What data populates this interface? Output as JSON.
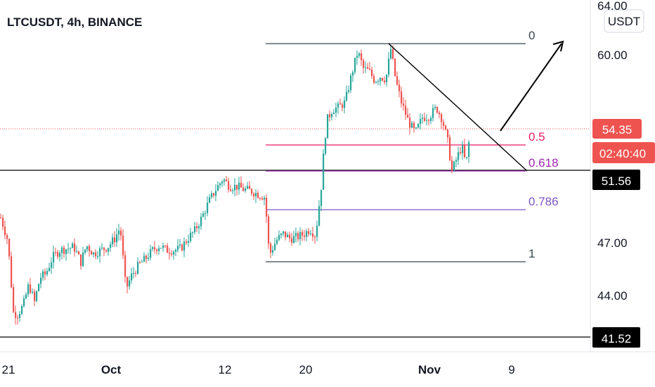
{
  "chart_data": {
    "type": "candlestick",
    "title": "LTCUSDT, 4h, BINANCE",
    "currency_badge": "USDT",
    "x_ticks": [
      "21",
      "Oct",
      "12",
      "20",
      "Nov",
      "9"
    ],
    "y_ticks": [
      "64.00",
      "60.00",
      "47.00",
      "44.00"
    ],
    "y_scale": "log",
    "ylim": [
      40.0,
      64.5
    ],
    "last_price": "54.35",
    "countdown": "02:40:40",
    "horizontal_levels": [
      "51.56",
      "41.52"
    ],
    "fib_levels": [
      {
        "label": "0",
        "price": 60.8
      },
      {
        "label": "0.5",
        "price": 53.3
      },
      {
        "label": "0.618",
        "price": 51.6
      },
      {
        "label": "0.786",
        "price": 49.3
      },
      {
        "label": "1",
        "price": 46.1
      }
    ],
    "price_path": [
      [
        0,
        48.6
      ],
      [
        10,
        47.2
      ],
      [
        18,
        43.0
      ],
      [
        24,
        42.9
      ],
      [
        32,
        43.4
      ],
      [
        40,
        44.6
      ],
      [
        48,
        43.6
      ],
      [
        56,
        45.0
      ],
      [
        64,
        45.2
      ],
      [
        74,
        46.2
      ],
      [
        84,
        46.6
      ],
      [
        94,
        46.7
      ],
      [
        104,
        46.8
      ],
      [
        114,
        45.9
      ],
      [
        122,
        46.9
      ],
      [
        132,
        46.4
      ],
      [
        142,
        46.6
      ],
      [
        152,
        46.8
      ],
      [
        162,
        47.3
      ],
      [
        170,
        48.0
      ],
      [
        178,
        44.3
      ],
      [
        186,
        45.1
      ],
      [
        196,
        45.7
      ],
      [
        206,
        46.1
      ],
      [
        216,
        46.6
      ],
      [
        226,
        46.9
      ],
      [
        236,
        46.6
      ],
      [
        246,
        46.6
      ],
      [
        256,
        46.7
      ],
      [
        266,
        47.3
      ],
      [
        276,
        47.8
      ],
      [
        286,
        48.6
      ],
      [
        296,
        49.6
      ],
      [
        306,
        50.4
      ],
      [
        316,
        51.1
      ],
      [
        326,
        50.6
      ],
      [
        336,
        50.6
      ],
      [
        346,
        50.4
      ],
      [
        356,
        50.3
      ],
      [
        366,
        50.1
      ],
      [
        376,
        49.9
      ],
      [
        382,
        46.3
      ],
      [
        392,
        47.2
      ],
      [
        402,
        47.6
      ],
      [
        412,
        47.3
      ],
      [
        422,
        47.4
      ],
      [
        432,
        47.6
      ],
      [
        440,
        47.9
      ],
      [
        448,
        47.5
      ],
      [
        452,
        49.0
      ],
      [
        456,
        50.6
      ],
      [
        460,
        53.2
      ],
      [
        464,
        55.1
      ],
      [
        472,
        55.9
      ],
      [
        480,
        56.0
      ],
      [
        490,
        56.4
      ],
      [
        500,
        58.6
      ],
      [
        508,
        60.2
      ],
      [
        516,
        58.9
      ],
      [
        524,
        58.7
      ],
      [
        532,
        58.0
      ],
      [
        540,
        58.3
      ],
      [
        548,
        58.1
      ],
      [
        555,
        60.4
      ],
      [
        562,
        58.0
      ],
      [
        570,
        56.4
      ],
      [
        580,
        55.0
      ],
      [
        590,
        54.2
      ],
      [
        600,
        55.3
      ],
      [
        610,
        55.4
      ],
      [
        620,
        56.0
      ],
      [
        628,
        55.2
      ],
      [
        636,
        53.6
      ],
      [
        642,
        51.6
      ],
      [
        650,
        52.6
      ],
      [
        656,
        53.3
      ],
      [
        662,
        52.0
      ],
      [
        668,
        54.35
      ]
    ]
  },
  "annotations": {
    "trendline": {
      "from": [
        555,
        60.8
      ],
      "to": [
        748,
        51.6
      ]
    },
    "arrow": {
      "from": [
        712,
        54.5
      ],
      "to": [
        800,
        60.5
      ]
    }
  },
  "colors": {
    "up": "#26a69a",
    "down": "#ef5350",
    "fib_0_5": "#e91e63",
    "fib_0_618": "#9c27b0",
    "fib_0_786": "#7e57c2",
    "fib_edge": "#37474f",
    "last_price_bg": "#ef5350",
    "level_bg": "#000000"
  }
}
